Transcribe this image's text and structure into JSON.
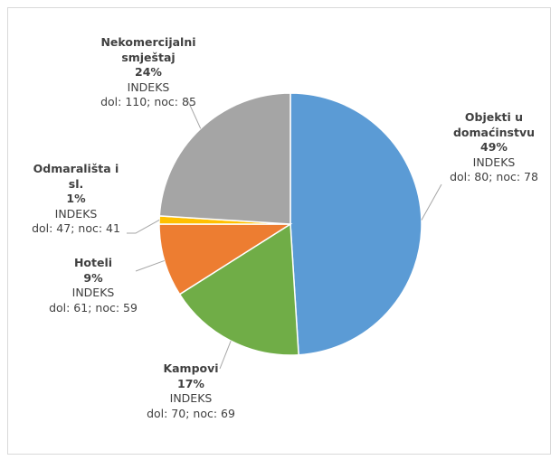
{
  "chart_data": {
    "type": "pie",
    "categories": [
      "Objekti u domaćinstvu",
      "Kampovi",
      "Hoteli",
      "Odmarališta i sl.",
      "Nekomercijalni smještaj"
    ],
    "values": [
      49,
      17,
      9,
      1,
      24
    ],
    "value_labels": [
      "49%",
      "17%",
      "9%",
      "1%",
      "24%"
    ],
    "colors": [
      "#5b9bd5",
      "#70ad47",
      "#ed7d31",
      "#ffc000",
      "#a5a5a5"
    ],
    "index_label": "INDEKS",
    "details": [
      "dol: 80; noc: 78",
      "dol: 70; noc: 69",
      "dol: 61; noc: 59",
      "dol: 47; noc: 41",
      "dol: 110; noc: 85"
    ]
  }
}
